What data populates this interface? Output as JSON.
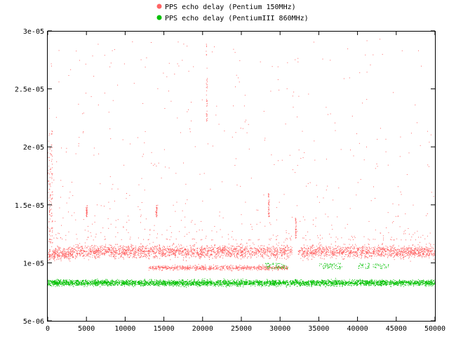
{
  "chart_data": {
    "type": "scatter",
    "title": "",
    "xlabel": "",
    "ylabel": "",
    "xlim": [
      0,
      50000
    ],
    "ylim": [
      5e-06,
      3e-05
    ],
    "x_ticks": [
      "0",
      "5000",
      "10000",
      "15000",
      "20000",
      "25000",
      "30000",
      "35000",
      "40000",
      "45000",
      "50000"
    ],
    "y_ticks": [
      "5e-06",
      "1e-05",
      "1.5e-05",
      "2e-05",
      "2.5e-05",
      "3e-05"
    ],
    "grid": false,
    "legend_position": "top-center",
    "series": [
      {
        "name": "PPS echo delay (Pentium 150MHz)",
        "color": "#ff6464",
        "x_range": [
          0,
          50000
        ],
        "y_band": [
          1.02e-05,
          1.21e-05
        ],
        "y_typical": 1.1e-05,
        "notes": "dense band; sparse outliers up to 3e-05; secondary band near 9.6e-06 between x=13000 and x=31000",
        "features": [
          {
            "x": 5000,
            "y_range": [
              1.4e-05,
              1.5e-05
            ]
          },
          {
            "x": 14000,
            "y_range": [
              1.4e-05,
              1.5e-05
            ]
          },
          {
            "x": 20500,
            "y_range": [
              2.2e-05,
              2.9e-05
            ]
          },
          {
            "x": 28500,
            "y_range": [
              1.4e-05,
              1.6e-05
            ]
          },
          {
            "x": 32000,
            "y_range": [
              1.2e-05,
              1.4e-05
            ]
          }
        ]
      },
      {
        "name": "PPS echo delay (PentiumIII 860MHz)",
        "color": "#00c000",
        "x_range": [
          0,
          50000
        ],
        "y_band": [
          7.9e-06,
          8.8e-06
        ],
        "y_typical": 8.3e-06,
        "notes": "dense band; small clusters near 9.5e-06 to 1e-05 around x=28000-31000, 35000-38000, 40000-44000"
      }
    ]
  }
}
